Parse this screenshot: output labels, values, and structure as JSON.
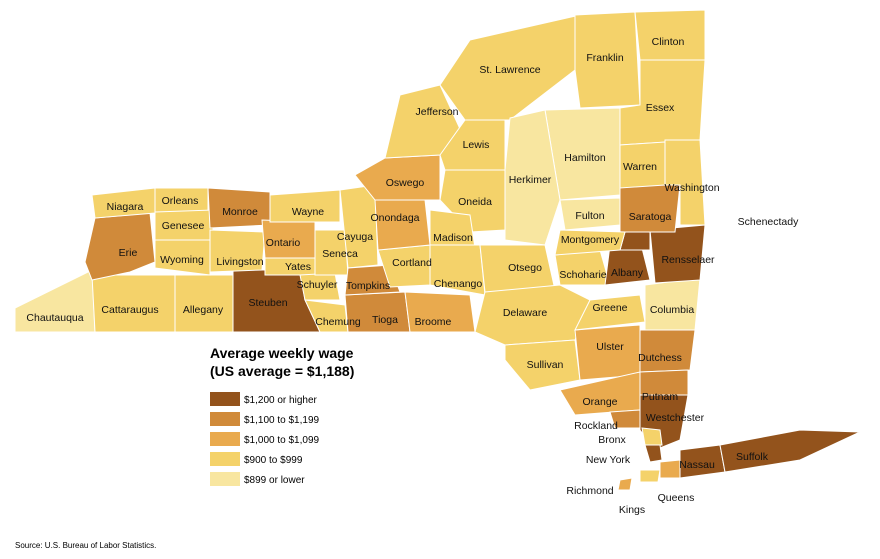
{
  "map": {
    "counties": [
      {
        "name": "Chautauqua",
        "class": 4
      },
      {
        "name": "Cattaraugus",
        "class": 3
      },
      {
        "name": "Allegany",
        "class": 3
      },
      {
        "name": "Steuben",
        "class": 0
      },
      {
        "name": "Chemung",
        "class": 3
      },
      {
        "name": "Tioga",
        "class": 1
      },
      {
        "name": "Broome",
        "class": 2
      },
      {
        "name": "Erie",
        "class": 1
      },
      {
        "name": "Niagara",
        "class": 3
      },
      {
        "name": "Orleans",
        "class": 3
      },
      {
        "name": "Genesee",
        "class": 3
      },
      {
        "name": "Wyoming",
        "class": 3
      },
      {
        "name": "Livingston",
        "class": 3
      },
      {
        "name": "Monroe",
        "class": 1
      },
      {
        "name": "Ontario",
        "class": 2
      },
      {
        "name": "Wayne",
        "class": 3
      },
      {
        "name": "Yates",
        "class": 3
      },
      {
        "name": "Schuyler",
        "class": 3
      },
      {
        "name": "Seneca",
        "class": 3
      },
      {
        "name": "Cayuga",
        "class": 3
      },
      {
        "name": "Tompkins",
        "class": 1
      },
      {
        "name": "Cortland",
        "class": 3
      },
      {
        "name": "Onondaga",
        "class": 2
      },
      {
        "name": "Oswego",
        "class": 2
      },
      {
        "name": "Jefferson",
        "class": 3
      },
      {
        "name": "Lewis",
        "class": 3
      },
      {
        "name": "St. Lawrence",
        "class": 3
      },
      {
        "name": "Franklin",
        "class": 3
      },
      {
        "name": "Clinton",
        "class": 3
      },
      {
        "name": "Essex",
        "class": 3
      },
      {
        "name": "Hamilton",
        "class": 4
      },
      {
        "name": "Herkimer",
        "class": 4
      },
      {
        "name": "Oneida",
        "class": 3
      },
      {
        "name": "Madison",
        "class": 3
      },
      {
        "name": "Chenango",
        "class": 3
      },
      {
        "name": "Otsego",
        "class": 3
      },
      {
        "name": "Delaware",
        "class": 3
      },
      {
        "name": "Sullivan",
        "class": 3
      },
      {
        "name": "Ulster",
        "class": 2
      },
      {
        "name": "Greene",
        "class": 3
      },
      {
        "name": "Columbia",
        "class": 4
      },
      {
        "name": "Dutchess",
        "class": 1
      },
      {
        "name": "Orange",
        "class": 2
      },
      {
        "name": "Rockland",
        "class": 1
      },
      {
        "name": "Putnam",
        "class": 1
      },
      {
        "name": "Westchester",
        "class": 0
      },
      {
        "name": "Bronx",
        "class": 3
      },
      {
        "name": "New York",
        "class": 0
      },
      {
        "name": "Kings",
        "class": 3
      },
      {
        "name": "Queens",
        "class": 2
      },
      {
        "name": "Richmond",
        "class": 2
      },
      {
        "name": "Nassau",
        "class": 0
      },
      {
        "name": "Suffolk",
        "class": 0
      },
      {
        "name": "Schoharie",
        "class": 3
      },
      {
        "name": "Albany",
        "class": 0
      },
      {
        "name": "Rensselaer",
        "class": 0
      },
      {
        "name": "Schenectady",
        "class": 0
      },
      {
        "name": "Saratoga",
        "class": 1
      },
      {
        "name": "Warren",
        "class": 3
      },
      {
        "name": "Washington",
        "class": 3
      },
      {
        "name": "Fulton",
        "class": 4
      },
      {
        "name": "Montgomery",
        "class": 3
      }
    ]
  },
  "legend": {
    "title": [
      "Average weekly wage",
      "(US average = $1,188)"
    ],
    "items": [
      {
        "label": "$1,200 or higher",
        "color": "#93531c"
      },
      {
        "label": "$1,100 to $1,199",
        "color": "#d08a3a"
      },
      {
        "label": "$1,000 to $1,099",
        "color": "#e9aa4e"
      },
      {
        "label": "$900 to $999",
        "color": "#f4d26a"
      },
      {
        "label": "$899 or lower",
        "color": "#f8e6a0"
      }
    ]
  },
  "source": "Source: U.S. Bureau of Labor Statistics."
}
